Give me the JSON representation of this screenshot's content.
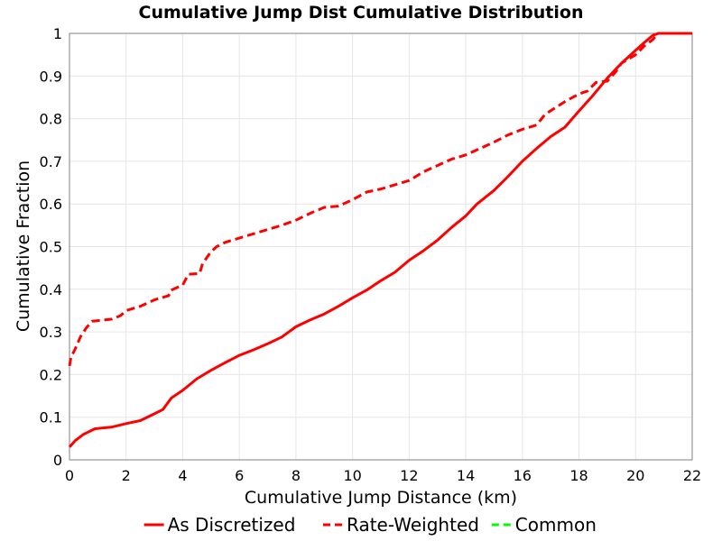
{
  "chart_data": {
    "type": "line",
    "title": "Cumulative Jump Dist Cumulative Distribution",
    "xlabel": "Cumulative Jump Distance (km)",
    "ylabel": "Cumulative Fraction",
    "xlim": [
      0,
      22
    ],
    "ylim": [
      0,
      1
    ],
    "x_ticks": [
      "0",
      "2",
      "4",
      "6",
      "8",
      "10",
      "12",
      "14",
      "16",
      "18",
      "20",
      "22"
    ],
    "y_ticks": [
      "0",
      "0.1",
      "0.2",
      "0.3",
      "0.4",
      "0.5",
      "0.6",
      "0.7",
      "0.8",
      "0.9",
      "1"
    ],
    "grid": true,
    "legend_position": "bottom",
    "series": [
      {
        "name": "As Discretized",
        "color": "#ff0000",
        "style": "solid",
        "points": [
          [
            0.0,
            0.03
          ],
          [
            0.2,
            0.045
          ],
          [
            0.5,
            0.06
          ],
          [
            0.9,
            0.073
          ],
          [
            1.5,
            0.077
          ],
          [
            2.0,
            0.085
          ],
          [
            2.5,
            0.092
          ],
          [
            3.0,
            0.108
          ],
          [
            3.3,
            0.118
          ],
          [
            3.6,
            0.145
          ],
          [
            4.0,
            0.163
          ],
          [
            4.5,
            0.19
          ],
          [
            5.0,
            0.21
          ],
          [
            5.5,
            0.228
          ],
          [
            6.0,
            0.245
          ],
          [
            6.5,
            0.258
          ],
          [
            7.0,
            0.272
          ],
          [
            7.5,
            0.288
          ],
          [
            8.0,
            0.312
          ],
          [
            8.5,
            0.328
          ],
          [
            9.0,
            0.342
          ],
          [
            9.5,
            0.36
          ],
          [
            10.0,
            0.38
          ],
          [
            10.5,
            0.398
          ],
          [
            11.0,
            0.42
          ],
          [
            11.5,
            0.44
          ],
          [
            12.0,
            0.468
          ],
          [
            12.5,
            0.49
          ],
          [
            13.0,
            0.515
          ],
          [
            13.5,
            0.545
          ],
          [
            14.0,
            0.572
          ],
          [
            14.4,
            0.6
          ],
          [
            15.0,
            0.632
          ],
          [
            15.5,
            0.665
          ],
          [
            16.0,
            0.7
          ],
          [
            16.5,
            0.73
          ],
          [
            17.0,
            0.758
          ],
          [
            17.5,
            0.78
          ],
          [
            18.0,
            0.818
          ],
          [
            18.5,
            0.855
          ],
          [
            19.0,
            0.895
          ],
          [
            19.5,
            0.93
          ],
          [
            20.0,
            0.96
          ],
          [
            20.3,
            0.978
          ],
          [
            20.6,
            0.995
          ],
          [
            20.8,
            1.0
          ],
          [
            22.0,
            1.0
          ]
        ]
      },
      {
        "name": "Rate-Weighted",
        "color": "#ff0000",
        "style": "dashed",
        "points": [
          [
            0.0,
            0.22
          ],
          [
            0.05,
            0.24
          ],
          [
            0.2,
            0.26
          ],
          [
            0.4,
            0.29
          ],
          [
            0.6,
            0.31
          ],
          [
            0.8,
            0.325
          ],
          [
            1.5,
            0.33
          ],
          [
            1.8,
            0.338
          ],
          [
            2.0,
            0.35
          ],
          [
            2.5,
            0.36
          ],
          [
            3.0,
            0.375
          ],
          [
            3.5,
            0.385
          ],
          [
            3.6,
            0.398
          ],
          [
            4.0,
            0.41
          ],
          [
            4.2,
            0.435
          ],
          [
            4.6,
            0.437
          ],
          [
            4.7,
            0.46
          ],
          [
            5.0,
            0.488
          ],
          [
            5.2,
            0.5
          ],
          [
            5.5,
            0.51
          ],
          [
            6.0,
            0.52
          ],
          [
            6.5,
            0.53
          ],
          [
            7.0,
            0.54
          ],
          [
            7.5,
            0.55
          ],
          [
            8.0,
            0.562
          ],
          [
            8.5,
            0.578
          ],
          [
            9.0,
            0.592
          ],
          [
            9.5,
            0.595
          ],
          [
            10.0,
            0.61
          ],
          [
            10.5,
            0.628
          ],
          [
            11.0,
            0.635
          ],
          [
            11.5,
            0.645
          ],
          [
            12.0,
            0.655
          ],
          [
            12.5,
            0.675
          ],
          [
            13.0,
            0.69
          ],
          [
            13.5,
            0.705
          ],
          [
            14.0,
            0.715
          ],
          [
            14.5,
            0.73
          ],
          [
            15.0,
            0.745
          ],
          [
            15.5,
            0.762
          ],
          [
            16.0,
            0.775
          ],
          [
            16.5,
            0.785
          ],
          [
            16.8,
            0.81
          ],
          [
            17.5,
            0.84
          ],
          [
            18.0,
            0.858
          ],
          [
            18.3,
            0.865
          ],
          [
            18.6,
            0.885
          ],
          [
            19.0,
            0.888
          ],
          [
            19.3,
            0.91
          ],
          [
            19.5,
            0.93
          ],
          [
            20.0,
            0.95
          ],
          [
            20.3,
            0.97
          ],
          [
            20.6,
            0.985
          ],
          [
            20.8,
            1.0
          ],
          [
            22.0,
            1.0
          ]
        ]
      },
      {
        "name": "Common",
        "color": "#00ff00",
        "style": "dashed",
        "points": []
      }
    ]
  }
}
